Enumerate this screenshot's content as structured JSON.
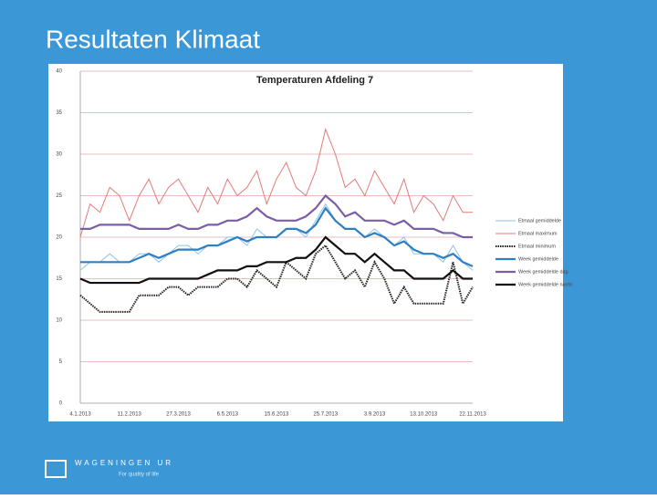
{
  "slide_title": "Resultaten Klimaat",
  "footer": {
    "logo": "WAGENINGEN UR",
    "tagline": "For quality of life"
  },
  "chart_data": {
    "type": "line",
    "title": "Temperaturen Afdeling 7",
    "categories": [
      "4.1.2013",
      null,
      null,
      null,
      null,
      "11.2.2013",
      null,
      null,
      null,
      null,
      "27.3.2013",
      null,
      null,
      null,
      null,
      "6.5.2013",
      null,
      null,
      null,
      null,
      "15.6.2013",
      null,
      null,
      null,
      null,
      "25.7.2013",
      null,
      null,
      null,
      null,
      "3.9.2013",
      null,
      null,
      null,
      null,
      "13.10.2013",
      null,
      null,
      null,
      null,
      "22.11.2013"
    ],
    "ylim": [
      0,
      40
    ],
    "yticks": [
      0,
      5,
      10,
      15,
      20,
      25,
      30,
      35,
      40
    ],
    "grid": true,
    "legend": "right",
    "series": [
      {
        "name": "Etmaal gemiddelde",
        "color": "#8ec3e6",
        "style": "thin",
        "values": [
          16,
          17,
          17,
          18,
          17,
          17,
          18,
          18,
          17,
          18,
          19,
          19,
          18,
          19,
          19,
          20,
          20,
          19,
          21,
          20,
          20,
          21,
          21,
          20,
          22,
          24,
          22,
          21,
          21,
          20,
          21,
          20,
          19,
          20,
          18,
          18,
          18,
          17,
          19,
          17,
          16
        ]
      },
      {
        "name": "Etmaal maximum",
        "color": "#e07b78",
        "style": "thin",
        "values": [
          20,
          24,
          23,
          26,
          25,
          22,
          25,
          27,
          24,
          26,
          27,
          25,
          23,
          26,
          24,
          27,
          25,
          26,
          28,
          24,
          27,
          29,
          26,
          25,
          28,
          33,
          30,
          26,
          27,
          25,
          28,
          26,
          24,
          27,
          23,
          25,
          24,
          22,
          25,
          23,
          23
        ]
      },
      {
        "name": "Etmaal minimum",
        "color": "#222222",
        "style": "dotted",
        "values": [
          13,
          12,
          11,
          11,
          11,
          11,
          13,
          13,
          13,
          14,
          14,
          13,
          14,
          14,
          14,
          15,
          15,
          14,
          16,
          15,
          14,
          17,
          16,
          15,
          18,
          19,
          17,
          15,
          16,
          14,
          17,
          15,
          12,
          14,
          12,
          12,
          12,
          12,
          17,
          12,
          14
        ]
      },
      {
        "name": "Week gemiddelde",
        "color": "#2f7fc4",
        "style": "thick",
        "values": [
          17,
          17,
          17,
          17,
          17,
          17,
          17.5,
          18,
          17.5,
          18,
          18.5,
          18.5,
          18.5,
          19,
          19,
          19.5,
          20,
          19.5,
          20,
          20,
          20,
          21,
          21,
          20.5,
          21.5,
          23.5,
          22,
          21,
          21,
          20,
          20.5,
          20,
          19,
          19.5,
          18.5,
          18,
          18,
          17.5,
          18,
          17,
          16.5
        ]
      },
      {
        "name": "Week gemiddelde dag",
        "color": "#7b5ea7",
        "style": "thick",
        "values": [
          21,
          21,
          21.5,
          21.5,
          21.5,
          21.5,
          21,
          21,
          21,
          21,
          21.5,
          21,
          21,
          21.5,
          21.5,
          22,
          22,
          22.5,
          23.5,
          22.5,
          22,
          22,
          22,
          22.5,
          23.5,
          25,
          24,
          22.5,
          23,
          22,
          22,
          22,
          21.5,
          22,
          21,
          21,
          21,
          20.5,
          20.5,
          20,
          20
        ]
      },
      {
        "name": "Week gemiddelde nacht",
        "color": "#111111",
        "style": "thick",
        "values": [
          15,
          14.5,
          14.5,
          14.5,
          14.5,
          14.5,
          14.5,
          15,
          15,
          15,
          15,
          15,
          15,
          15.5,
          16,
          16,
          16,
          16.5,
          16.5,
          17,
          17,
          17,
          17.5,
          17.5,
          18.5,
          20,
          19,
          18,
          18,
          17,
          18,
          17,
          16,
          16,
          15,
          15,
          15,
          15,
          16,
          15,
          15
        ]
      }
    ]
  }
}
